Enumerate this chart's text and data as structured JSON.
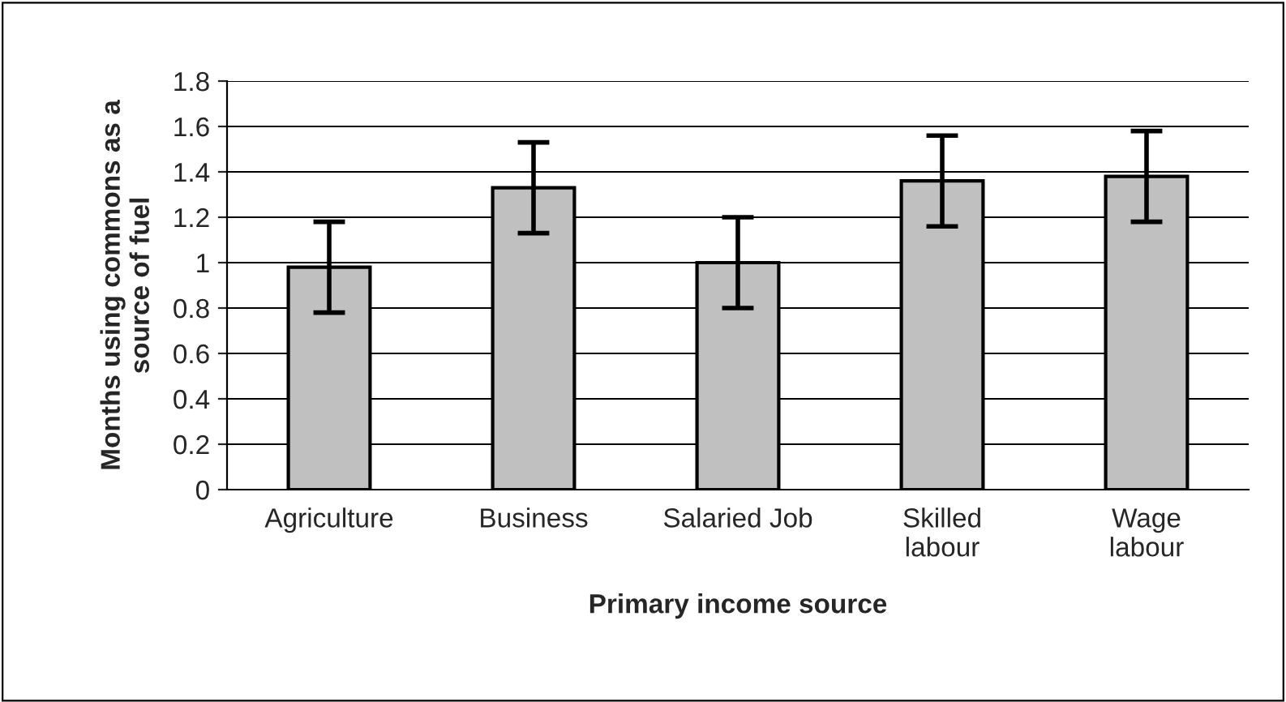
{
  "chart_data": {
    "type": "bar",
    "xlabel": "Primary income source",
    "ylabel": "Months using commons as a\nsource of fuel",
    "categories": [
      "Agriculture",
      "Business",
      "Salaried Job",
      "Skilled\nlabour",
      "Wage\nlabour"
    ],
    "values": [
      0.98,
      1.33,
      1.0,
      1.36,
      1.38
    ],
    "errors": [
      0.2,
      0.2,
      0.2,
      0.2,
      0.2
    ],
    "color": "#c0c0c0",
    "ylim": [
      0,
      1.8
    ],
    "yticks": [
      0,
      {
        "value": 0.2,
        "label": "0.2"
      },
      {
        "value": 0.4,
        "label": "0.4"
      },
      {
        "value": 0.6,
        "label": "0.6"
      },
      {
        "value": 0.8,
        "label": "0.8"
      },
      1,
      {
        "value": 1.2,
        "label": "1.2"
      },
      {
        "value": 1.4,
        "label": "1.4"
      },
      {
        "value": 1.6,
        "label": "1.6"
      },
      {
        "value": 1.8,
        "label": "1.8"
      }
    ],
    "grid": "y",
    "legend": false
  }
}
